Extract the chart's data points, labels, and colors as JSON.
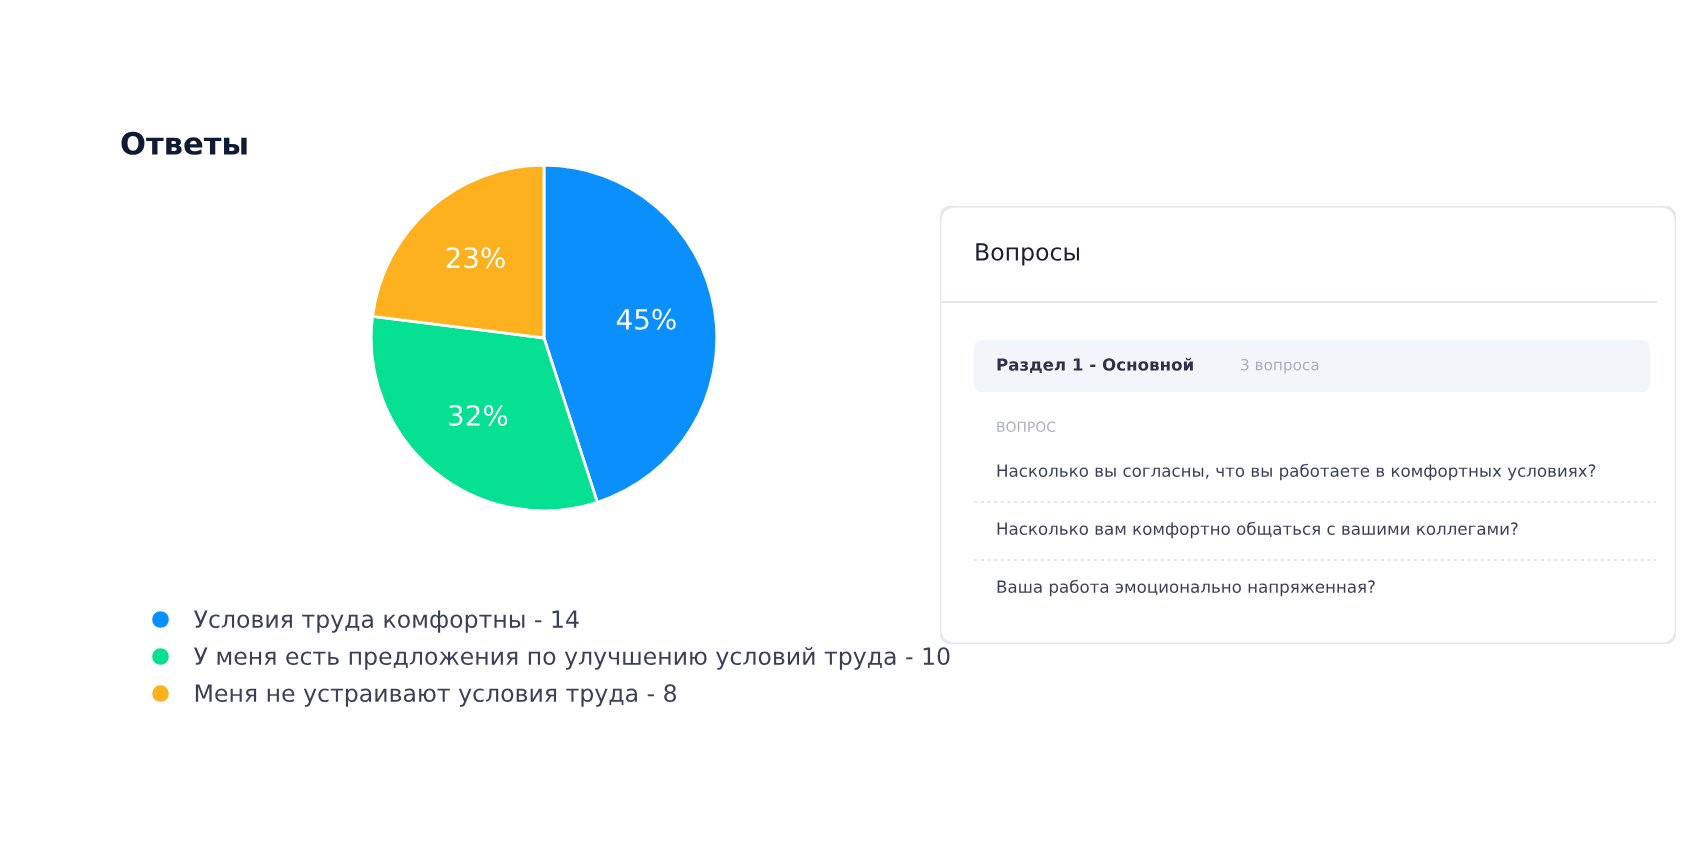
{
  "chart_data": [
    {
      "type": "pie",
      "title": "Ответы",
      "categories": [
        "Условия труда комфортны - 14",
        "У меня есть предложения по улучшению условий труда - 10",
        "Меня не устраивают условия труда - 8"
      ],
      "values": [
        45,
        32,
        23
      ],
      "value_labels": [
        "45%",
        "32%",
        "23%"
      ],
      "colors": [
        "#0a8ffd",
        "#06e093",
        "#fdb11e"
      ],
      "legend": "bottom"
    },
    {
      "type": "other",
      "title": "Вопросы",
      "annotations": [
        "Раздел 1 - Основной",
        "3 вопроса",
        "ВОПРОС",
        "Насколько вы согласны, что вы работаете в комфортных условиях?",
        "Насколько вам комфортно общаться с вашими коллегами?",
        "Ваша работа эмоционально напряженная?"
      ]
    }
  ]
}
